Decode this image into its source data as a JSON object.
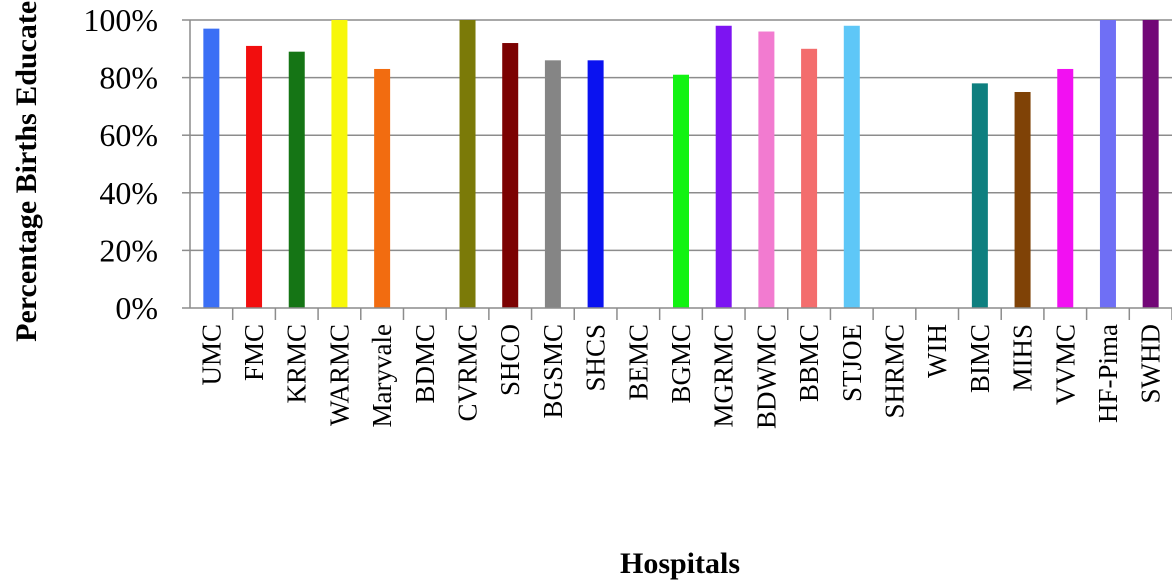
{
  "chart_data": {
    "type": "bar",
    "title": "",
    "xlabel": "Hospitals",
    "ylabel": "Percentage Births Educated",
    "ylim": [
      0,
      100
    ],
    "yticks": [
      "0%",
      "20%",
      "40%",
      "60%",
      "80%",
      "100%"
    ],
    "grid": true,
    "legend": "none",
    "categories": [
      "UMC",
      "FMC",
      "KRMC",
      "WARMC",
      "Maryvale",
      "BDMC",
      "CVRMC",
      "SHCO",
      "BGSMC",
      "SHCS",
      "BEMC",
      "BGMC",
      "MGRMC",
      "BDWMC",
      "BBMC",
      "STJOE",
      "SHRMC",
      "WIH",
      "BIMC",
      "MIHS",
      "VVMC",
      "HF-Pima",
      "SWHD"
    ],
    "values": [
      97,
      91,
      89,
      100,
      83,
      0,
      100,
      92,
      86,
      86,
      0,
      81,
      98,
      96,
      90,
      98,
      0,
      0,
      78,
      75,
      83,
      100,
      100
    ],
    "colors": [
      "#3b6ff5",
      "#f20e0e",
      "#157515",
      "#f7f70a",
      "#f26c10",
      "#999999",
      "#7b7a08",
      "#7c0202",
      "#858585",
      "#0a12f0",
      "#999999",
      "#12f312",
      "#7d14f2",
      "#f27bd0",
      "#f36d6d",
      "#5ec7f7",
      "#999999",
      "#999999",
      "#0e7f7f",
      "#7f4206",
      "#f210f2",
      "#6f6ff5",
      "#720777"
    ]
  }
}
